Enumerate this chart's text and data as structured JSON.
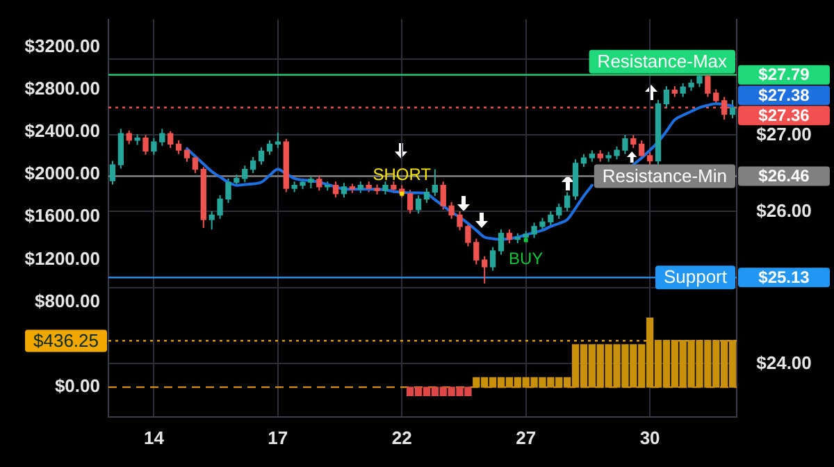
{
  "chart_data": {
    "type": "candlestick",
    "categories": [
      null,
      null,
      null,
      null,
      null,
      "14",
      null,
      null,
      null,
      null,
      null,
      null,
      null,
      null,
      null,
      null,
      null,
      null,
      null,
      null,
      "17",
      null,
      null,
      null,
      null,
      null,
      null,
      null,
      null,
      null,
      null,
      null,
      null,
      null,
      null,
      "22",
      null,
      null,
      null,
      null,
      null,
      null,
      null,
      null,
      null,
      null,
      null,
      null,
      null,
      null,
      "27",
      null,
      null,
      null,
      null,
      null,
      null,
      null,
      null,
      null,
      null,
      null,
      null,
      null,
      null,
      "30",
      null,
      null,
      null,
      null,
      null,
      null,
      null,
      null,
      null,
      null
    ],
    "series": [
      {
        "ohlc": [
          [
            26.4,
            26.66,
            26.35,
            26.61
          ],
          [
            26.61,
            27.08,
            26.56,
            27.02
          ],
          [
            27.02,
            27.06,
            26.88,
            26.93
          ],
          [
            26.93,
            27.01,
            26.87,
            26.96
          ],
          [
            26.96,
            27.0,
            26.74,
            26.79
          ],
          [
            26.79,
            26.96,
            26.74,
            26.91
          ],
          [
            26.91,
            27.08,
            26.86,
            27.02
          ],
          [
            27.02,
            27.05,
            26.83,
            26.88
          ],
          [
            26.88,
            26.93,
            26.75,
            26.8
          ],
          [
            26.8,
            26.84,
            26.65,
            26.7
          ],
          [
            26.7,
            26.74,
            26.5,
            26.55
          ],
          [
            26.55,
            26.58,
            25.78,
            25.89
          ],
          [
            25.89,
            26.0,
            25.76,
            25.95
          ],
          [
            25.95,
            26.21,
            25.9,
            26.16
          ],
          [
            26.16,
            26.43,
            26.11,
            26.38
          ],
          [
            26.38,
            26.48,
            26.33,
            26.43
          ],
          [
            26.43,
            26.6,
            26.38,
            26.55
          ],
          [
            26.55,
            26.71,
            26.5,
            26.66
          ],
          [
            26.66,
            26.84,
            26.61,
            26.79
          ],
          [
            26.79,
            26.93,
            26.74,
            26.88
          ],
          [
            26.88,
            27.03,
            26.83,
            26.91
          ],
          [
            26.91,
            26.95,
            26.25,
            26.3
          ],
          [
            26.3,
            26.39,
            26.25,
            26.34
          ],
          [
            26.34,
            26.43,
            26.29,
            26.38
          ],
          [
            26.38,
            26.45,
            26.3,
            26.42
          ],
          [
            26.42,
            26.46,
            26.27,
            26.32
          ],
          [
            26.32,
            26.39,
            26.27,
            26.34
          ],
          [
            26.34,
            26.39,
            26.18,
            26.23
          ],
          [
            26.23,
            26.37,
            26.18,
            26.32
          ],
          [
            26.32,
            26.36,
            26.24,
            26.29
          ],
          [
            26.29,
            26.39,
            26.24,
            26.34
          ],
          [
            26.34,
            26.39,
            26.25,
            26.3
          ],
          [
            26.3,
            26.35,
            26.22,
            26.27
          ],
          [
            26.27,
            26.39,
            26.22,
            26.34
          ],
          [
            26.34,
            26.39,
            26.24,
            26.29
          ],
          [
            26.29,
            26.34,
            26.18,
            26.23
          ],
          [
            26.23,
            26.28,
            25.97,
            26.02
          ],
          [
            26.02,
            26.21,
            25.97,
            26.16
          ],
          [
            26.16,
            26.3,
            26.11,
            26.25
          ],
          [
            26.25,
            26.55,
            26.2,
            26.34
          ],
          [
            26.34,
            26.39,
            26.02,
            26.07
          ],
          [
            26.07,
            26.12,
            25.9,
            25.95
          ],
          [
            25.95,
            26.0,
            25.75,
            25.8
          ],
          [
            25.8,
            25.85,
            25.54,
            25.59
          ],
          [
            25.59,
            25.64,
            25.3,
            25.36
          ],
          [
            25.36,
            25.41,
            25.05,
            25.27
          ],
          [
            25.27,
            25.53,
            25.22,
            25.48
          ],
          [
            25.48,
            25.76,
            25.43,
            25.71
          ],
          [
            25.71,
            25.76,
            25.58,
            25.63
          ],
          [
            25.63,
            25.71,
            25.58,
            25.66
          ],
          [
            25.66,
            25.74,
            25.61,
            25.7
          ],
          [
            25.7,
            25.85,
            25.65,
            25.8
          ],
          [
            25.8,
            25.91,
            25.75,
            25.86
          ],
          [
            25.86,
            26.0,
            25.81,
            25.95
          ],
          [
            25.95,
            26.1,
            25.9,
            26.05
          ],
          [
            26.05,
            26.25,
            26.0,
            26.2
          ],
          [
            26.2,
            26.68,
            26.15,
            26.63
          ],
          [
            26.63,
            26.75,
            26.58,
            26.7
          ],
          [
            26.7,
            26.8,
            26.65,
            26.75
          ],
          [
            26.75,
            26.8,
            26.65,
            26.7
          ],
          [
            26.7,
            26.78,
            26.65,
            26.73
          ],
          [
            26.73,
            26.85,
            26.68,
            26.8
          ],
          [
            26.8,
            27.0,
            26.75,
            26.95
          ],
          [
            26.95,
            27.0,
            26.83,
            26.88
          ],
          [
            26.88,
            26.93,
            26.68,
            26.73
          ],
          [
            26.73,
            26.78,
            26.58,
            26.66
          ],
          [
            26.66,
            27.46,
            26.61,
            27.41
          ],
          [
            27.41,
            27.64,
            27.36,
            27.59
          ],
          [
            27.59,
            27.64,
            27.5,
            27.55
          ],
          [
            27.55,
            27.68,
            27.5,
            27.63
          ],
          [
            27.63,
            27.73,
            27.58,
            27.68
          ],
          [
            27.68,
            27.79,
            27.63,
            27.77
          ],
          [
            27.77,
            27.79,
            27.5,
            27.55
          ],
          [
            27.55,
            27.6,
            27.4,
            27.45
          ],
          [
            27.45,
            27.5,
            27.2,
            27.27
          ],
          [
            27.27,
            27.46,
            27.22,
            27.36
          ]
        ]
      },
      {
        "type": "line",
        "color": "#1e6fe0",
        "values": [
          null,
          null,
          null,
          null,
          null,
          null,
          null,
          null,
          null,
          26.82,
          26.72,
          26.62,
          26.52,
          26.45,
          26.38,
          26.34,
          26.35,
          26.36,
          26.38,
          26.47,
          26.55,
          26.49,
          26.43,
          26.41,
          26.4,
          26.38,
          26.35,
          26.32,
          26.29,
          26.29,
          26.29,
          26.29,
          26.29,
          26.28,
          26.26,
          26.25,
          26.24,
          26.24,
          26.23,
          26.15,
          26.07,
          25.99,
          25.92,
          25.84,
          25.75,
          25.66,
          25.64,
          25.63,
          25.64,
          25.66,
          25.69,
          25.72,
          25.75,
          25.8,
          25.84,
          25.89,
          26.04,
          26.2,
          26.34,
          null,
          null,
          null,
          null,
          26.61,
          26.7,
          26.8,
          26.91,
          27.05,
          27.2,
          27.26,
          27.31,
          27.36,
          27.39,
          27.41,
          27.4,
          27.38
        ],
        "value_labels": [
          null,
          null,
          null,
          null,
          null,
          null,
          null,
          null,
          null,
          null,
          null,
          null,
          null,
          null,
          null,
          null,
          null,
          null,
          null,
          null,
          null,
          null,
          null,
          null,
          null,
          null,
          null,
          null,
          null,
          null,
          null,
          null,
          null,
          null,
          null,
          null,
          null,
          null,
          null,
          null,
          null,
          null,
          null,
          null,
          null,
          null,
          null,
          null,
          null,
          null,
          null,
          null,
          null,
          null,
          null,
          null,
          null,
          null,
          null,
          null,
          null,
          null,
          null,
          null,
          null,
          null,
          null,
          null,
          null,
          null,
          null,
          null,
          null,
          null,
          null,
          "$27.38"
        ]
      },
      {
        "type": "bar",
        "axis": "y2",
        "values": [
          null,
          null,
          null,
          null,
          null,
          null,
          null,
          null,
          null,
          null,
          null,
          null,
          null,
          null,
          null,
          null,
          null,
          null,
          null,
          null,
          null,
          null,
          null,
          null,
          null,
          null,
          null,
          null,
          null,
          null,
          null,
          null,
          null,
          null,
          null,
          null,
          -80,
          -80,
          -80,
          -80,
          -80,
          -80,
          -80,
          -80,
          90,
          90,
          90,
          90,
          90,
          90,
          90,
          90,
          90,
          90,
          90,
          90,
          400,
          400,
          400,
          400,
          400,
          400,
          400,
          400,
          400,
          650,
          440,
          440,
          440,
          440,
          440,
          440,
          440,
          440,
          440,
          440
        ],
        "colors": [
          null,
          null,
          null,
          null,
          null,
          null,
          null,
          null,
          null,
          null,
          null,
          null,
          null,
          null,
          null,
          null,
          null,
          null,
          null,
          null,
          null,
          null,
          null,
          null,
          null,
          null,
          null,
          null,
          null,
          null,
          null,
          null,
          null,
          null,
          null,
          null,
          "#e04848",
          "#e04848",
          "#e04848",
          "#e04848",
          "#e04848",
          "#e04848",
          "#e04848",
          "#e04848",
          "#c9900a",
          "#c9900a",
          "#c9900a",
          "#c9900a",
          "#c9900a",
          "#c9900a",
          "#c9900a",
          "#c9900a",
          "#c9900a",
          "#c9900a",
          "#c9900a",
          "#c9900a",
          "#c9900a",
          "#c9900a",
          "#c9900a",
          "#c9900a",
          "#c9900a",
          "#c9900a",
          "#c9900a",
          "#c9900a",
          "#c9900a",
          "#c9900a",
          "#c9900a",
          "#c9900a",
          "#c9900a",
          "#c9900a",
          "#c9900a",
          "#c9900a",
          "#c9900a",
          "#c9900a",
          "#c9900a",
          "#c9900a"
        ]
      }
    ],
    "ylim": [
      23.3,
      28.52
    ],
    "yticks": [
      {
        "value": 24,
        "label": "$24.00"
      },
      {
        "value": 25,
        "label": null
      },
      {
        "value": 25.13,
        "label": "$25.13"
      },
      {
        "value": 26,
        "label": "$26.00"
      },
      {
        "value": 26.46,
        "label": "$26.46"
      },
      {
        "value": 27,
        "label": "$27.00"
      },
      {
        "value": 27.79,
        "label": "$27.79"
      },
      {
        "value": 28,
        "label": null
      }
    ],
    "y2lim": [
      -280,
      3460
    ],
    "y2ticks": [
      {
        "value": 0,
        "label": "$0.00"
      },
      {
        "value": 800,
        "label": "$800.00"
      },
      {
        "value": 1200,
        "label": "$1200.00"
      },
      {
        "value": 1600,
        "label": "$1600.00"
      },
      {
        "value": 2000,
        "label": "$2000.00"
      },
      {
        "value": 2400,
        "label": "$2400.00"
      },
      {
        "value": 2800,
        "label": "$2800.00"
      },
      {
        "value": 3200,
        "label": "$3200.00"
      }
    ],
    "ref_lines": [
      {
        "axis": "y",
        "value": 27.79,
        "label": "Resistance-Max",
        "color": "#1fd87a"
      },
      {
        "axis": "y",
        "value": 27.36,
        "label": "$27.36",
        "color": "#f05050",
        "line_style": "dotted"
      },
      {
        "axis": "y",
        "value": 26.46,
        "label": "Resistance-Min",
        "color": "#808080"
      },
      {
        "axis": "y",
        "value": 25.13,
        "label": "Support",
        "color": "#2196f3"
      },
      {
        "axis": "y2",
        "value": 436.25,
        "label": "$436.25",
        "color": "#f0a800",
        "line_style": "dotted"
      },
      {
        "axis": "y2",
        "value": 0,
        "color": "#d4900a",
        "line_style": "dashed"
      }
    ],
    "annotations": [
      {
        "text": "SHORT",
        "x": "22",
        "y": 26.23
      },
      {
        "text": "BUY",
        "x": "27",
        "y": 25.62
      }
    ],
    "grid": true
  }
}
